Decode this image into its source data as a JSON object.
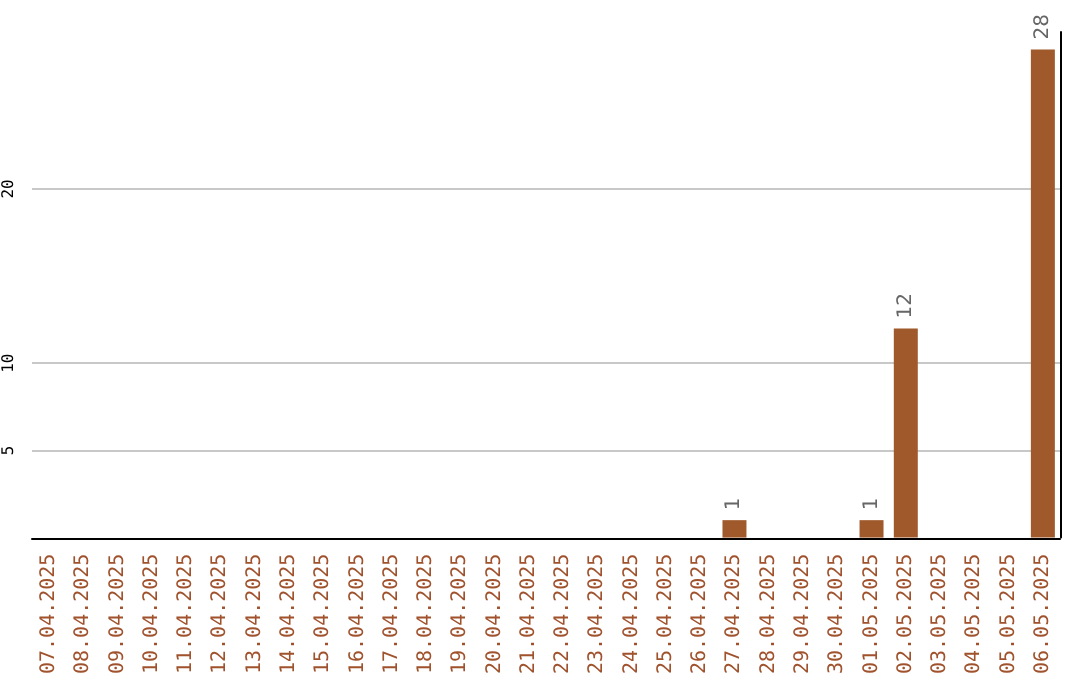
{
  "chart_data": {
    "type": "bar",
    "categories": [
      "07.04.2025",
      "08.04.2025",
      "09.04.2025",
      "10.04.2025",
      "11.04.2025",
      "12.04.2025",
      "13.04.2025",
      "14.04.2025",
      "15.04.2025",
      "16.04.2025",
      "17.04.2025",
      "18.04.2025",
      "19.04.2025",
      "20.04.2025",
      "21.04.2025",
      "22.04.2025",
      "23.04.2025",
      "24.04.2025",
      "25.04.2025",
      "26.04.2025",
      "27.04.2025",
      "28.04.2025",
      "29.04.2025",
      "30.04.2025",
      "01.05.2025",
      "02.05.2025",
      "03.05.2025",
      "04.05.2025",
      "05.05.2025",
      "06.05.2025"
    ],
    "values": [
      0,
      0,
      0,
      0,
      0,
      0,
      0,
      0,
      0,
      0,
      0,
      0,
      0,
      0,
      0,
      0,
      0,
      0,
      0,
      0,
      1,
      0,
      0,
      0,
      1,
      12,
      0,
      0,
      0,
      28
    ],
    "value_labels": [
      null,
      null,
      null,
      null,
      null,
      null,
      null,
      null,
      null,
      null,
      null,
      null,
      null,
      null,
      null,
      null,
      null,
      null,
      null,
      null,
      "1",
      null,
      null,
      null,
      "1",
      "12",
      null,
      null,
      null,
      "28"
    ],
    "color": "#a0592b",
    "ylim": [
      0,
      29
    ],
    "yticks": [
      5,
      10,
      20
    ],
    "grid": "y"
  }
}
